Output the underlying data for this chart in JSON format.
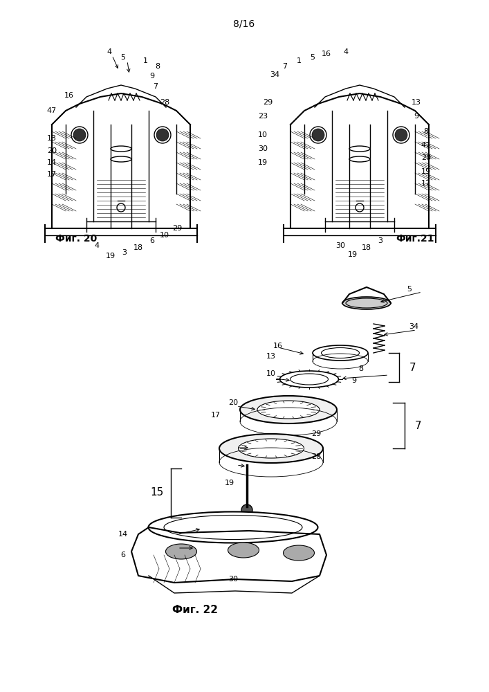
{
  "page_number": "8/16",
  "fig20_label": "Фиг. 20",
  "fig21_label": "Фиг.21",
  "fig22_label": "Фиг. 22",
  "background_color": "#ffffff",
  "line_color": "#000000",
  "hatch_color": "#000000",
  "title_fontsize": 11,
  "label_fontsize": 9,
  "fig_width": 7.07,
  "fig_height": 10.0,
  "dpi": 100
}
